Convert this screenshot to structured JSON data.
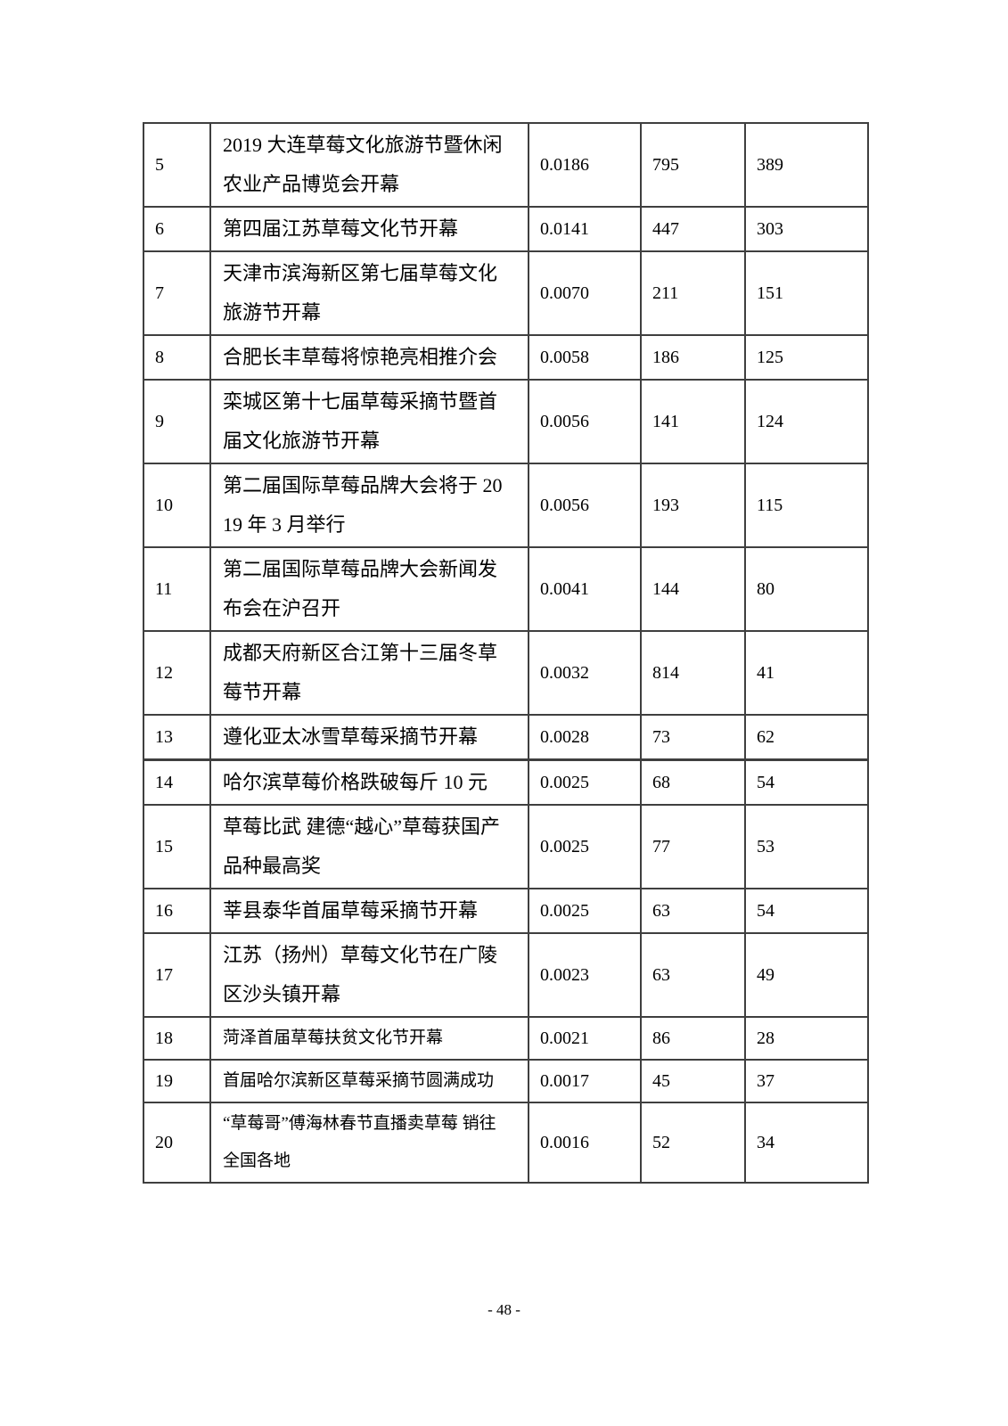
{
  "page": {
    "number_label": "- 48 -"
  },
  "table": {
    "rows": [
      {
        "no": "5",
        "title": "2019 大连草莓文化旅游节暨休闲农业产品博览会开幕",
        "ratio": "0.0186",
        "value1": "795",
        "value2": "389"
      },
      {
        "no": "6",
        "title": "第四届江苏草莓文化节开幕",
        "ratio": "0.0141",
        "value1": "447",
        "value2": "303"
      },
      {
        "no": "7",
        "title": "天津市滨海新区第七届草莓文化旅游节开幕",
        "ratio": "0.0070",
        "value1": "211",
        "value2": "151"
      },
      {
        "no": "8",
        "title": "合肥长丰草莓将惊艳亮相推介会",
        "ratio": "0.0058",
        "value1": "186",
        "value2": "125"
      },
      {
        "no": "9",
        "title": "栾城区第十七届草莓采摘节暨首届文化旅游节开幕",
        "ratio": "0.0056",
        "value1": "141",
        "value2": "124"
      },
      {
        "no": "10",
        "title": "第二届国际草莓品牌大会将于 2019 年 3 月举行",
        "ratio": "0.0056",
        "value1": "193",
        "value2": "115"
      },
      {
        "no": "11",
        "title": "第二届国际草莓品牌大会新闻发布会在沪召开",
        "ratio": "0.0041",
        "value1": "144",
        "value2": "80"
      },
      {
        "no": "12",
        "title": "成都天府新区合江第十三届冬草莓节开幕",
        "ratio": "0.0032",
        "value1": "814",
        "value2": "41"
      },
      {
        "no": "13",
        "title": "遵化亚太冰雪草莓采摘节开幕",
        "ratio": "0.0028",
        "value1": "73",
        "value2": "62"
      },
      {
        "no": "14",
        "title": "哈尔滨草莓价格跌破每斤 10 元",
        "ratio": "0.0025",
        "value1": "68",
        "value2": "54"
      },
      {
        "no": "15",
        "title": "草莓比武 建德“越心”草莓获国产品种最高奖",
        "ratio": "0.0025",
        "value1": "77",
        "value2": "53"
      },
      {
        "no": "16",
        "title": "莘县泰华首届草莓采摘节开幕",
        "ratio": "0.0025",
        "value1": "63",
        "value2": "54"
      },
      {
        "no": "17",
        "title": "江苏（扬州）草莓文化节在广陵区沙头镇开幕",
        "ratio": "0.0023",
        "value1": "63",
        "value2": "49"
      },
      {
        "no": "18",
        "title": "菏泽首届草莓扶贫文化节开幕",
        "ratio": "0.0021",
        "value1": "86",
        "value2": "28"
      },
      {
        "no": "19",
        "title": "首届哈尔滨新区草莓采摘节圆满成功",
        "ratio": "0.0017",
        "value1": "45",
        "value2": "37"
      },
      {
        "no": "20",
        "title": "“草莓哥”傅海林春节直播卖草莓 销往全国各地",
        "ratio": "0.0016",
        "value1": "52",
        "value2": "34"
      }
    ]
  }
}
